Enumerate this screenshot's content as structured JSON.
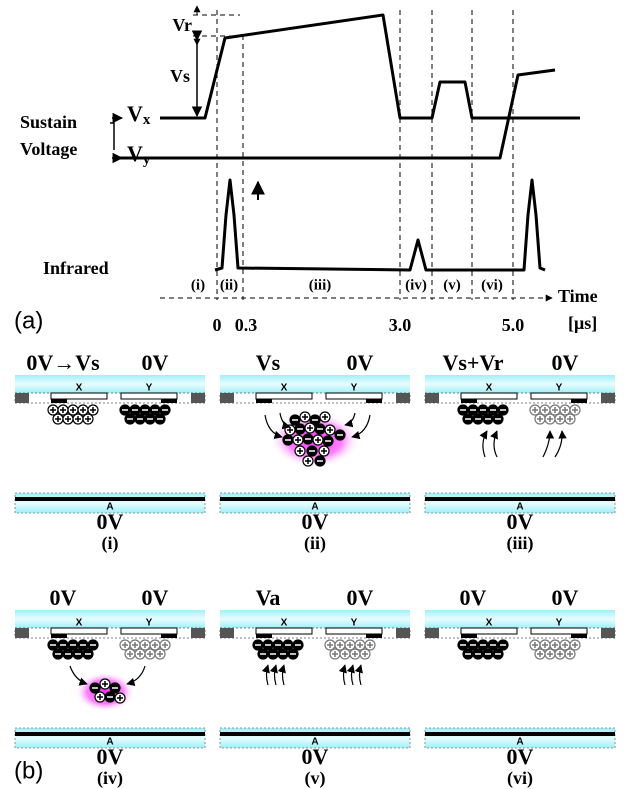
{
  "waveform": {
    "vr": "Vr",
    "vs": "Vs",
    "sustain": "Sustain",
    "voltage": "Voltage",
    "vx": {
      "main": "V",
      "sub": "x"
    },
    "vy": {
      "main": "V",
      "sub": "y"
    },
    "infrared": "Infrared",
    "intervals": [
      "(i)",
      "(ii)",
      "(iii)",
      "(iv)",
      "(v)",
      "(vi)"
    ],
    "time": "Time",
    "unit": "[μs]",
    "time_ticks": [
      "0",
      "0.3",
      "3.0",
      "5.0"
    ],
    "label": "(a)"
  },
  "panels": [
    {
      "left": "0V→Vs",
      "right": "0V",
      "x": "X",
      "y": "Y",
      "a": "A",
      "bottom": "0V",
      "label": "(i)"
    },
    {
      "left": "Vs",
      "right": "0V",
      "x": "X",
      "y": "Y",
      "a": "A",
      "bottom": "0V",
      "label": "(ii)"
    },
    {
      "left": "Vs+Vr",
      "right": "0V",
      "x": "X",
      "y": "Y",
      "a": "A",
      "bottom": "0V",
      "label": "(iii)"
    },
    {
      "left": "0V",
      "right": "0V",
      "x": "X",
      "y": "Y",
      "a": "A",
      "bottom": "0V",
      "label": "(iv)"
    },
    {
      "left": "Va",
      "right": "0V",
      "x": "X",
      "y": "Y",
      "a": "A",
      "bottom": "0V",
      "label": "(v)"
    },
    {
      "left": "0V",
      "right": "0V",
      "x": "X",
      "y": "Y",
      "a": "A",
      "bottom": "0V",
      "label": "(vi)"
    }
  ],
  "panels_label": "(b)"
}
